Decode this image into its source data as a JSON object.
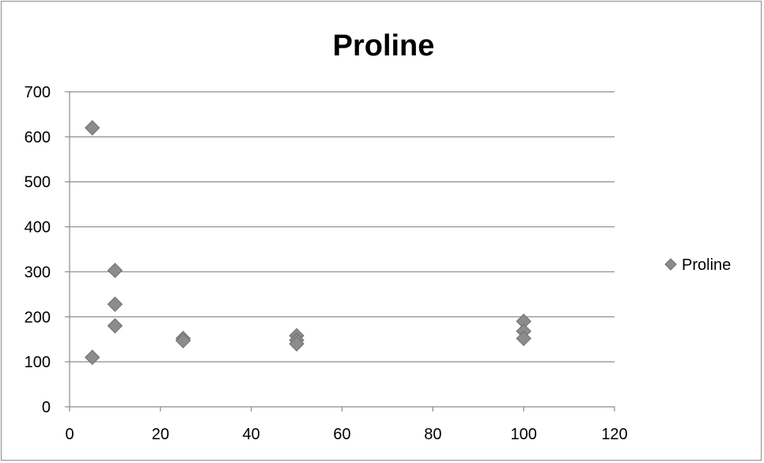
{
  "chart_data": {
    "type": "scatter",
    "title": "Proline",
    "xlabel": "",
    "ylabel": "",
    "xlim": [
      0,
      120
    ],
    "ylim": [
      0,
      700
    ],
    "x_ticks": [
      0,
      20,
      40,
      60,
      80,
      100,
      120
    ],
    "y_ticks": [
      0,
      100,
      200,
      300,
      400,
      500,
      600,
      700
    ],
    "grid": "horizontal",
    "legend": "right",
    "marker": "diamond",
    "colors": {
      "marker": "#8c8c8c",
      "marker_edge": "#6e6e6e",
      "grid": "#8c8c8c"
    },
    "series": [
      {
        "name": "Proline",
        "points": [
          {
            "x": 5,
            "y": 620
          },
          {
            "x": 5,
            "y": 110
          },
          {
            "x": 10,
            "y": 303
          },
          {
            "x": 10,
            "y": 228
          },
          {
            "x": 10,
            "y": 180
          },
          {
            "x": 25,
            "y": 152
          },
          {
            "x": 25,
            "y": 147
          },
          {
            "x": 50,
            "y": 158
          },
          {
            "x": 50,
            "y": 148
          },
          {
            "x": 50,
            "y": 140
          },
          {
            "x": 100,
            "y": 190
          },
          {
            "x": 100,
            "y": 168
          },
          {
            "x": 100,
            "y": 152
          }
        ]
      }
    ]
  }
}
